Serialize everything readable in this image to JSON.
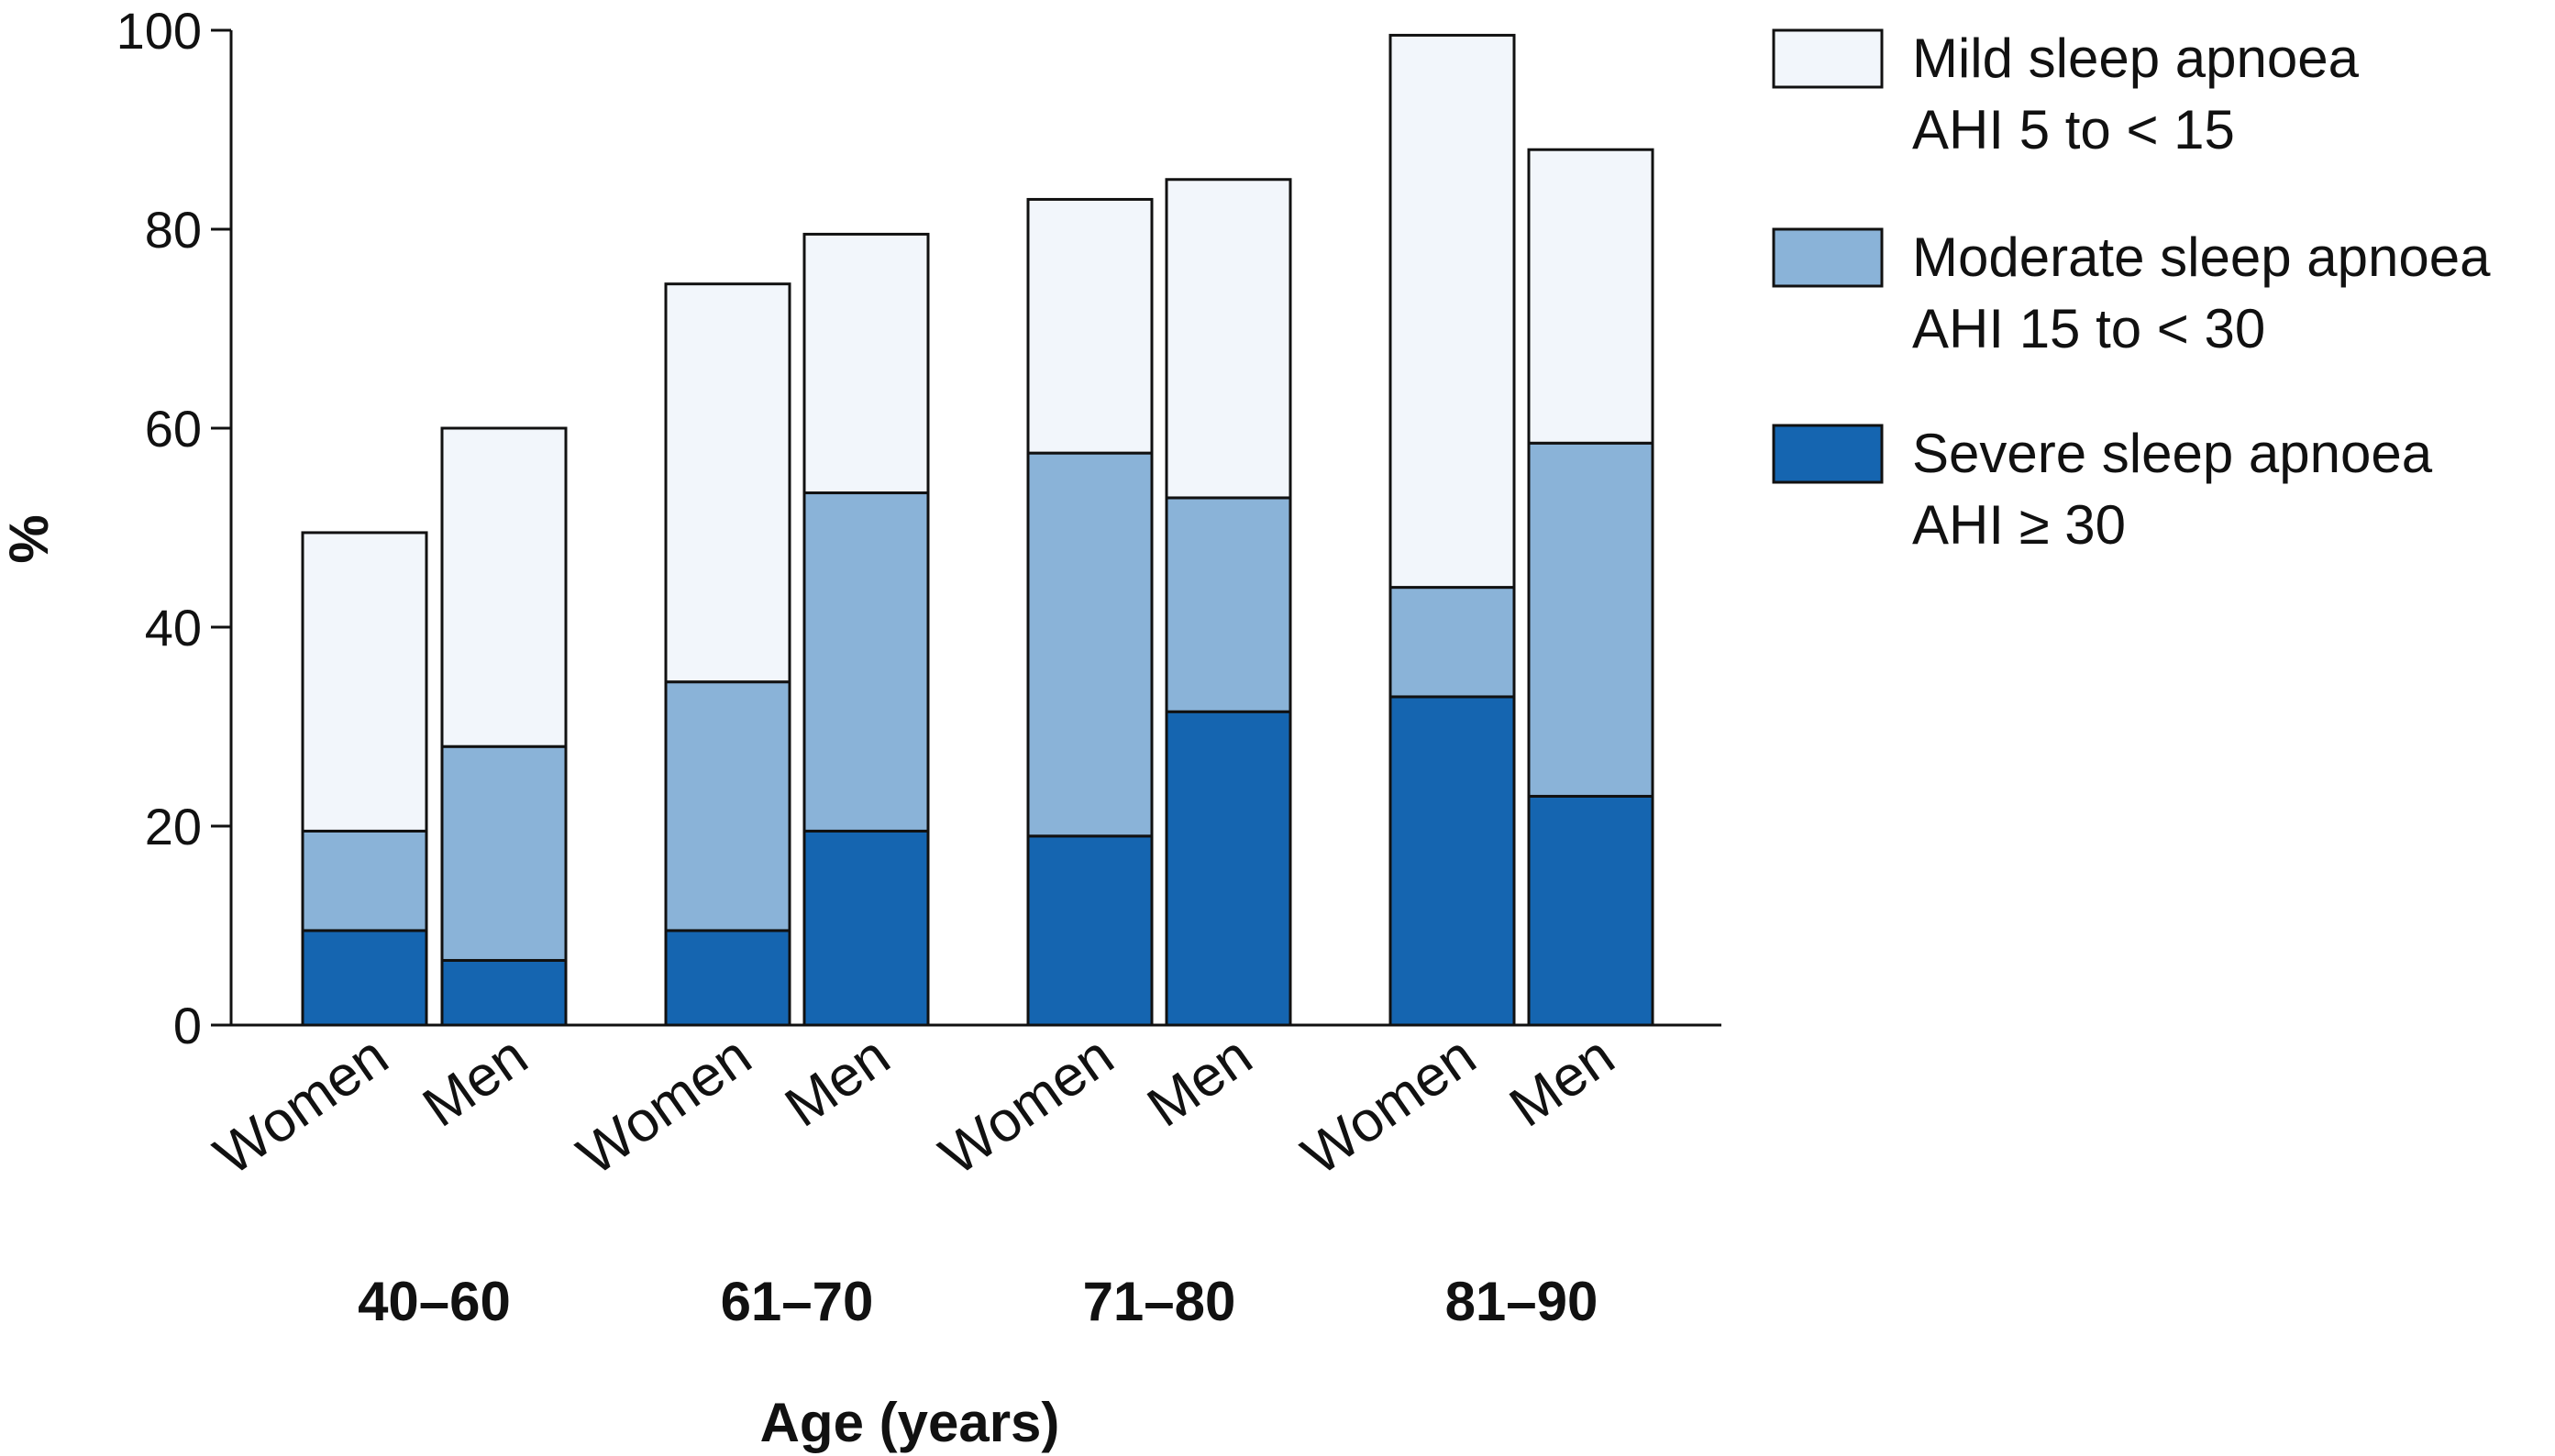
{
  "chart_data": {
    "type": "bar",
    "stacked": true,
    "xlabel": "Age (years)",
    "ylabel": "%",
    "ylim": [
      0,
      100
    ],
    "yticks": [
      0,
      20,
      40,
      60,
      80,
      100
    ],
    "groups": [
      "40–60",
      "61–70",
      "71–80",
      "81–90"
    ],
    "categories": [
      "Women",
      "Men",
      "Women",
      "Men",
      "Women",
      "Men",
      "Women",
      "Men"
    ],
    "series": [
      {
        "key": "severe",
        "name": "Severe sleep apnoea",
        "name_line2": "AHI ≥ 30",
        "color": "#1565b0",
        "values": [
          9.5,
          6.5,
          9.5,
          19.5,
          19,
          31.5,
          33,
          23
        ]
      },
      {
        "key": "moderate",
        "name": "Moderate sleep apnoea",
        "name_line2": "AHI 15 to < 30",
        "color": "#8ab3d8",
        "values": [
          10,
          21.5,
          25,
          34,
          38.5,
          21.5,
          11,
          35.5
        ]
      },
      {
        "key": "mild",
        "name": "Mild sleep apnoea",
        "name_line2": "AHI 5 to < 15",
        "color": "#f2f6fb",
        "values": [
          30,
          32,
          40,
          26,
          25.5,
          32,
          55.5,
          29.5
        ]
      }
    ],
    "totals": [
      49.5,
      60,
      74.5,
      79.5,
      83,
      85,
      99.5,
      88
    ],
    "legend_order": [
      "mild",
      "moderate",
      "severe"
    ],
    "legend_position": "top-right",
    "grid": false
  }
}
